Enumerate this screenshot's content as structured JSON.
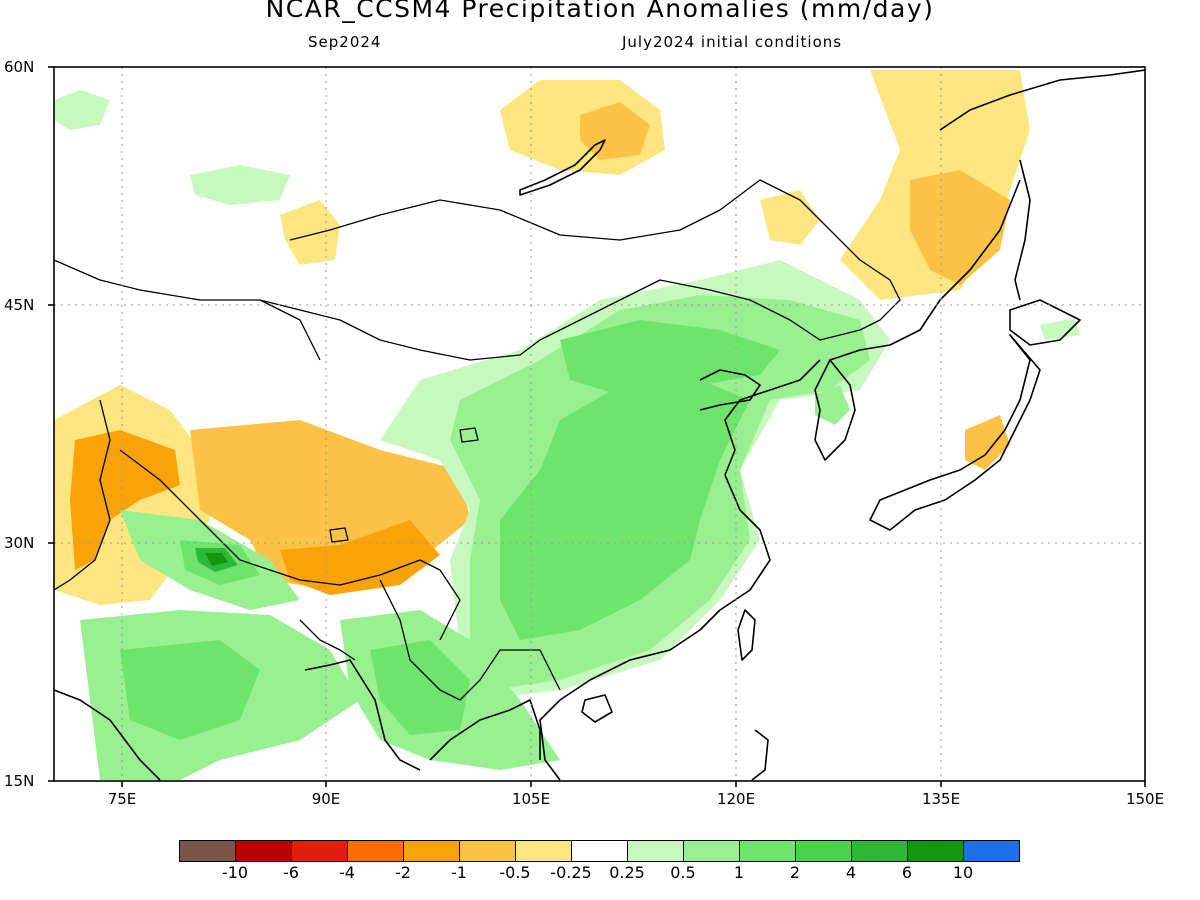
{
  "title": "NCAR_CCSM4 Precipitation Anomalies (mm/day)",
  "subtitle_left": "Sep2024",
  "subtitle_right": "July2024 initial conditions",
  "lat_labels": [
    "60N",
    "45N",
    "30N",
    "15N"
  ],
  "lon_labels": [
    "75E",
    "90E",
    "105E",
    "120E",
    "135E",
    "150E"
  ],
  "colorbar": {
    "colors": [
      "#7a5548",
      "#b80000",
      "#e01e0c",
      "#fa6e00",
      "#f9a20a",
      "#fcc245",
      "#fde680",
      "#ffffff",
      "#c7f9be",
      "#98f090",
      "#6ee46c",
      "#48d44a",
      "#2fb838",
      "#14960f",
      "#1f6fe6"
    ],
    "labels": [
      "-10",
      "-6",
      "-4",
      "-2",
      "-1",
      "-0.5",
      "-0.25",
      "0.25",
      "0.5",
      "1",
      "2",
      "4",
      "6",
      "10"
    ]
  },
  "legend_colors": {
    "dry_light": "#fde680",
    "dry_mid": "#fcc245",
    "dry_strong": "#f9a20a",
    "wet_light": "#c7f9be",
    "wet_mid": "#98f090",
    "wet_strong": "#6ee46c",
    "wet_peak": "#2fb838",
    "wet_max": "#14960f"
  }
}
